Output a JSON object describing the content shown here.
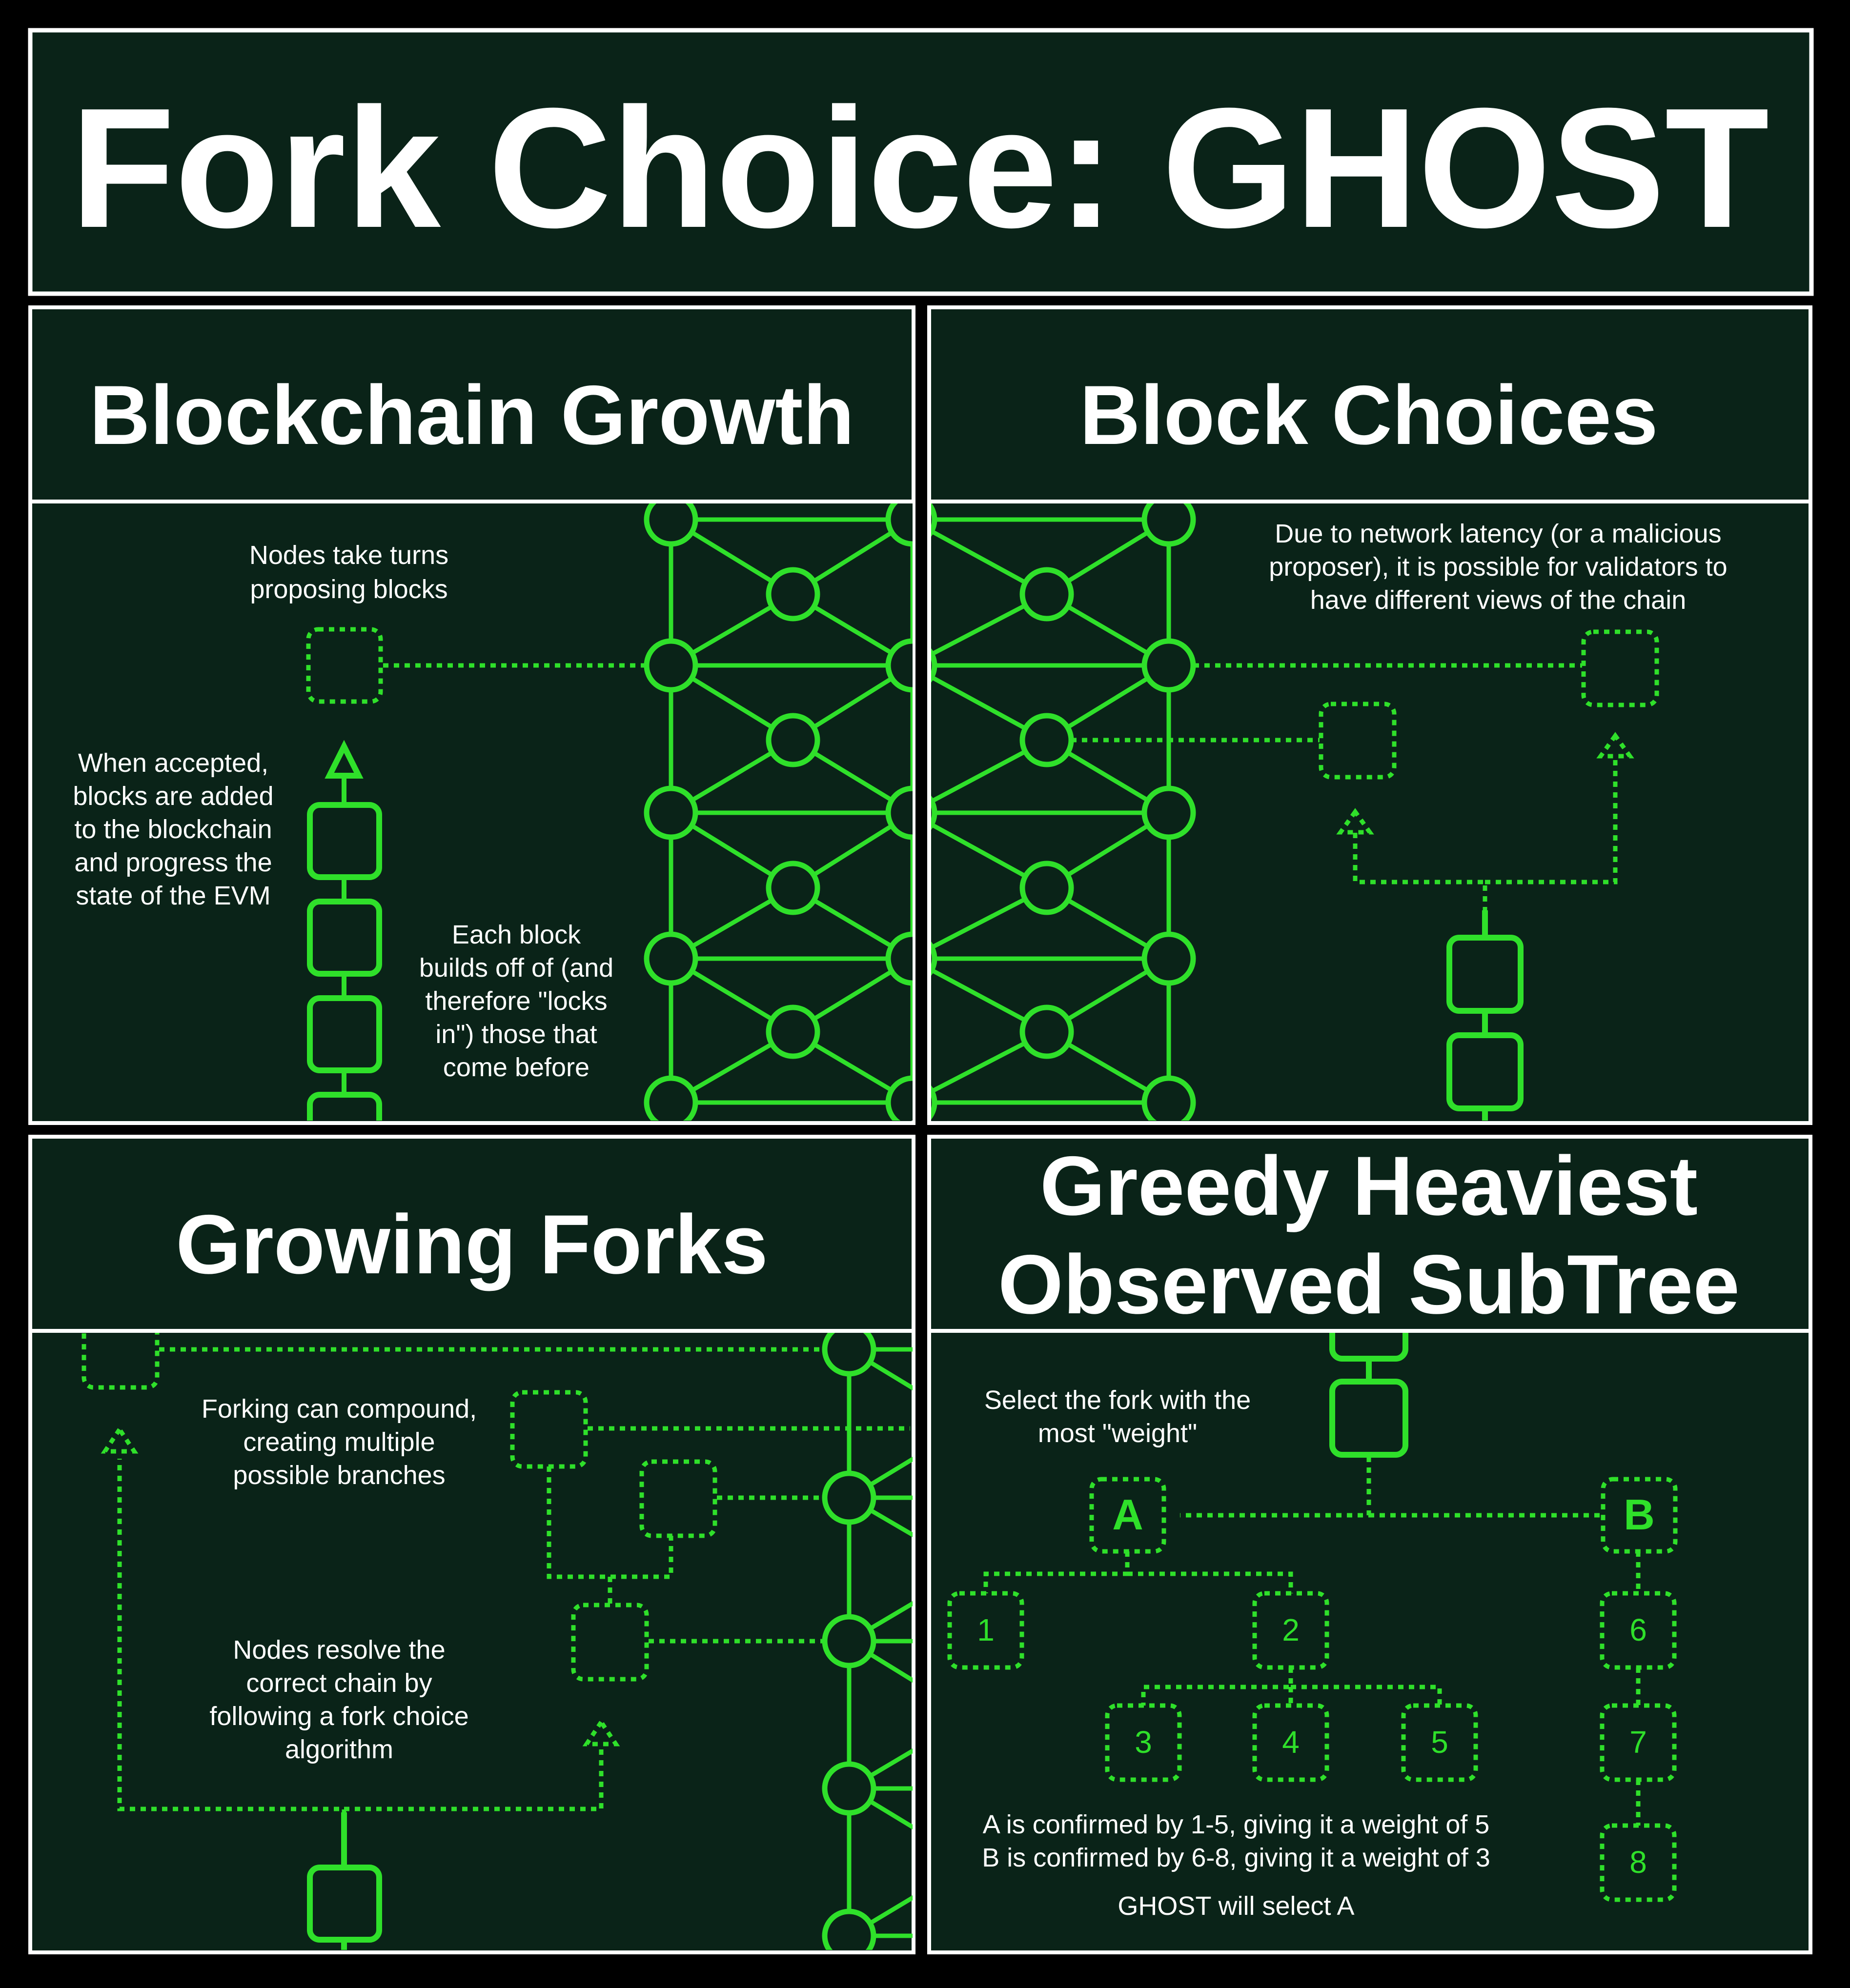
{
  "title": "Fork Choice: GHOST",
  "panels": {
    "growth": {
      "title": "Blockchain Growth",
      "note_proposing": [
        "Nodes take turns",
        "proposing blocks"
      ],
      "note_accepted": [
        "When accepted,",
        "blocks are added",
        "to the blockchain",
        "and progress the",
        "state of the EVM"
      ],
      "note_builds": [
        "Each block",
        "builds off of (and",
        "therefore \"locks",
        "in\") those that",
        "come before"
      ]
    },
    "choices": {
      "title": "Block Choices",
      "note": [
        "Due to network latency (or a malicious",
        "proposer), it is possible for validators to",
        "have different views of the chain"
      ]
    },
    "forks": {
      "title": "Growing Forks",
      "note_compound": [
        "Forking can compound,",
        "creating multiple",
        "possible branches"
      ],
      "note_resolve": [
        "Nodes resolve the",
        "correct chain by",
        "following a fork choice",
        "algorithm"
      ]
    },
    "ghost": {
      "title": [
        "Greedy Heaviest",
        "Observed SubTree"
      ],
      "note_select": [
        "Select the fork with the",
        "most \"weight\""
      ],
      "forks": [
        "A",
        "B"
      ],
      "children": [
        "1",
        "2",
        "3",
        "4",
        "5",
        "6",
        "7",
        "8"
      ],
      "summary": [
        "A is confirmed by 1-5, giving it a weight of 5",
        "B is confirmed by 6-8, giving it a weight of 3"
      ],
      "conclusion": "GHOST will select A"
    }
  },
  "colors": {
    "background": "#000000",
    "panel": "#0a2318",
    "border": "#ffffff",
    "accent": "#2fe02a",
    "text": "#ffffff"
  }
}
